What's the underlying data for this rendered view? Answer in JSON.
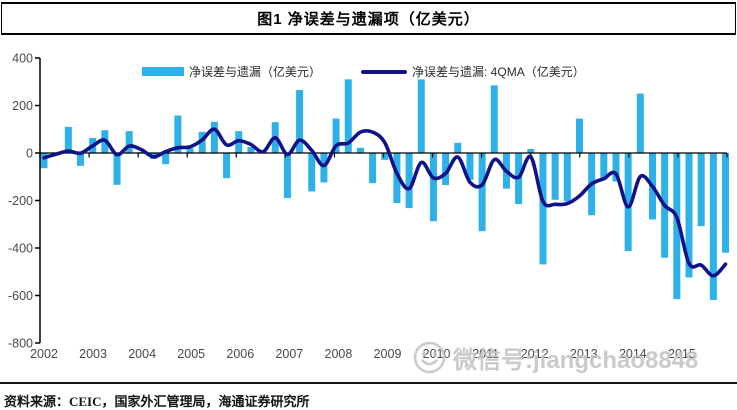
{
  "figure": {
    "title": "图1  净误差与遗漏项（亿美元）",
    "source": "资料来源：CEIC，国家外汇管理局，海通证券研究所",
    "watermark": "微信号:jiangchao8848"
  },
  "legend": {
    "bar_label": "净误差与遗漏（亿美元）",
    "line_label": "净误差与遗漏: 4QMA（亿美元）"
  },
  "colors": {
    "bar": "#2DB1E8",
    "line": "#10128A",
    "axis": "#000000",
    "tick_text": "#4a4a4a",
    "watermark": "#c5c5c5"
  },
  "chart_data": {
    "type": "bar",
    "subtype": "quarterly bars with 4-quarter moving-average line",
    "x_start": "2002Q1",
    "x_frequency": "quarterly",
    "title": "图1  净误差与遗漏项（亿美元）",
    "ylabel": "",
    "xlabel": "",
    "ylim": [
      -800,
      400
    ],
    "y_ticks": [
      400,
      200,
      0,
      -200,
      -400,
      -600,
      -800
    ],
    "year_labels": [
      "2002",
      "2003",
      "2004",
      "2005",
      "2006",
      "2007",
      "2008",
      "2009",
      "2010",
      "2011",
      "2012",
      "2013",
      "2014",
      "2015"
    ],
    "legend_position": "top",
    "grid": false,
    "series": [
      {
        "name": "净误差与遗漏（亿美元）",
        "type": "bar",
        "color": "#2DB1E8",
        "values": [
          -64,
          3,
          110,
          -54,
          63,
          96,
          -134,
          92,
          4,
          -25,
          -47,
          158,
          20,
          89,
          131,
          -106,
          92,
          25,
          10,
          130,
          -190,
          265,
          -162,
          -124,
          145,
          310,
          22,
          -127,
          -29,
          -211,
          -232,
          310,
          -287,
          -135,
          43,
          -113,
          -329,
          285,
          -150,
          -215,
          17,
          -469,
          -197,
          -204,
          145,
          -262,
          -113,
          -120,
          -413,
          250,
          -280,
          -441,
          -615,
          -524,
          -308,
          -619,
          -420
        ]
      },
      {
        "name": "净误差与遗漏: 4QMA（亿美元）",
        "type": "line",
        "color": "#10128A",
        "values": [
          -20,
          -5,
          8,
          -1,
          30,
          54,
          -7,
          29,
          14,
          -16,
          6,
          22,
          26,
          55,
          100,
          34,
          52,
          36,
          5,
          64,
          -6,
          54,
          11,
          -53,
          31,
          42,
          88,
          88,
          44,
          -86,
          -150,
          -40,
          -105,
          -86,
          -17,
          -123,
          -134,
          -28,
          -77,
          -102,
          -16,
          -204,
          -216,
          -213,
          -181,
          -130,
          -108,
          -88,
          -227,
          -99,
          -141,
          -221,
          -272,
          -465,
          -472,
          -517,
          -468
        ]
      }
    ]
  }
}
